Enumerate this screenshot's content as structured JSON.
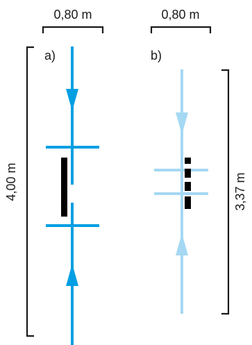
{
  "diagram": {
    "width_a_label": "0,80 m",
    "width_b_label": "0,80 m",
    "height_a_label": "4,00 m",
    "height_b_label": "3,37 m",
    "label_a": "a)",
    "label_b": "b)"
  },
  "colors": {
    "variant_a": "#009ee3",
    "variant_b": "#a5d8f3",
    "bars": "#000000",
    "dimension_lines": "#1a1a1a"
  }
}
